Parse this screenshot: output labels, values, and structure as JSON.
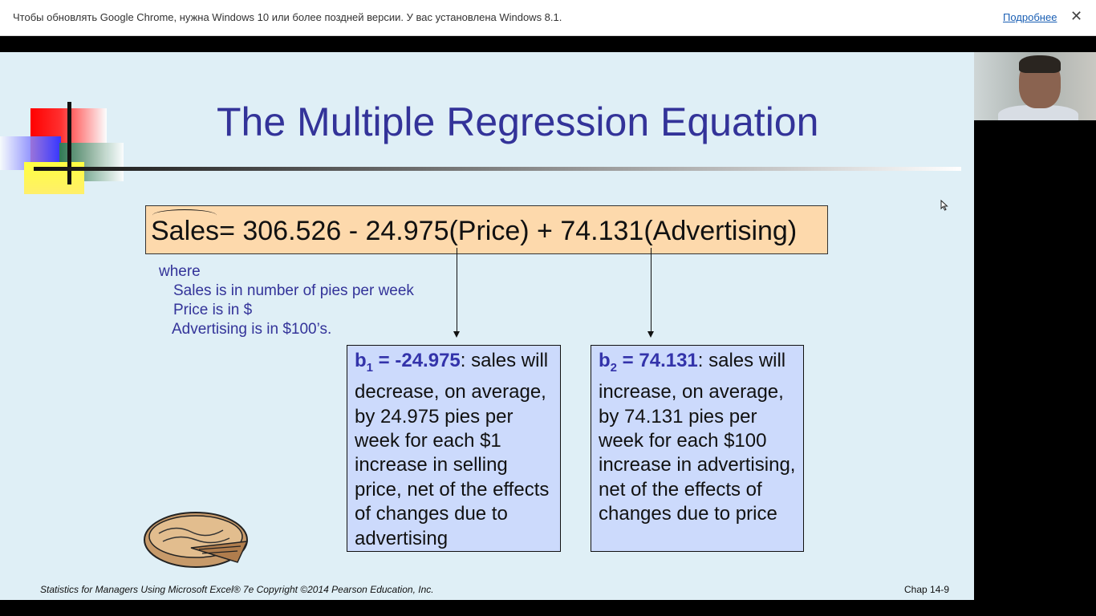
{
  "infobar": {
    "message": "Чтобы обновлять Google Chrome, нужна Windows 10 или более поздней версии. У вас установлена Windows 8.1.",
    "link": "Подробнее",
    "close": "✕"
  },
  "slide": {
    "title": "The Multiple Regression Equation",
    "equation": {
      "lhs": "Sales",
      "rhs": "= 306.526 - 24.975(Price) + 74.131(Advertising)"
    },
    "where": {
      "label": "where",
      "lines": [
        "Sales is in number of pies per week",
        "Price is in $",
        "Advertising is in $100’s."
      ]
    },
    "b1": {
      "symbol": "b",
      "sub": "1",
      "value": " = -24.975",
      "text": ": sales will decrease, on average, by 24.975 pies per week for each $1 increase in selling price, net of the effects of changes due to advertising"
    },
    "b2": {
      "symbol": "b",
      "sub": "2",
      "value": " = 74.131",
      "text": ": sales will increase, on average, by 74.131 pies per week for each $100 increase in advertising, net of the effects of changes due to price"
    },
    "footer_left": "Statistics for Managers Using Microsoft Excel® 7e Copyright ©2014 Pearson Education, Inc.",
    "footer_right": "Chap 14-9"
  }
}
